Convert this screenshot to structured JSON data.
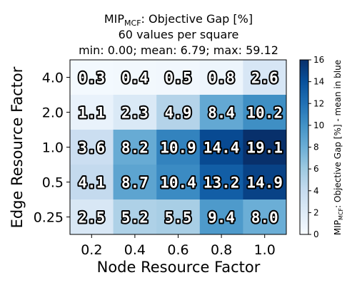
{
  "title": {
    "main_prefix": "MIP",
    "main_sub": "MCF",
    "main_suffix": ": Objective Gap [%]",
    "line2": "60 values per square",
    "line3": "min: 0.00; mean: 6.79; max: 59.12"
  },
  "chart_data": {
    "type": "heatmap",
    "xlabel": "Node Resource Factor",
    "ylabel": "Edge Resource Factor",
    "x_categories": [
      "0.2",
      "0.4",
      "0.6",
      "0.8",
      "1.0"
    ],
    "y_categories": [
      "4.0",
      "2.0",
      "1.0",
      "0.5",
      "0.25"
    ],
    "values": [
      [
        0.3,
        0.4,
        0.5,
        0.8,
        2.6
      ],
      [
        1.1,
        2.3,
        4.9,
        8.4,
        10.2
      ],
      [
        3.6,
        8.2,
        10.9,
        14.4,
        19.1
      ],
      [
        4.1,
        8.7,
        10.4,
        13.2,
        14.9
      ],
      [
        2.5,
        5.2,
        5.5,
        9.4,
        8.0
      ]
    ],
    "colorbar": {
      "min": 0,
      "max": 16,
      "ticks": [
        "0",
        "2",
        "4",
        "6",
        "8",
        "10",
        "12",
        "14",
        "16"
      ],
      "label_prefix": "MIP",
      "label_sub": "MCF",
      "label_suffix": ": Objective Gap [%] - mean in blue",
      "colormap": "Blues"
    }
  }
}
